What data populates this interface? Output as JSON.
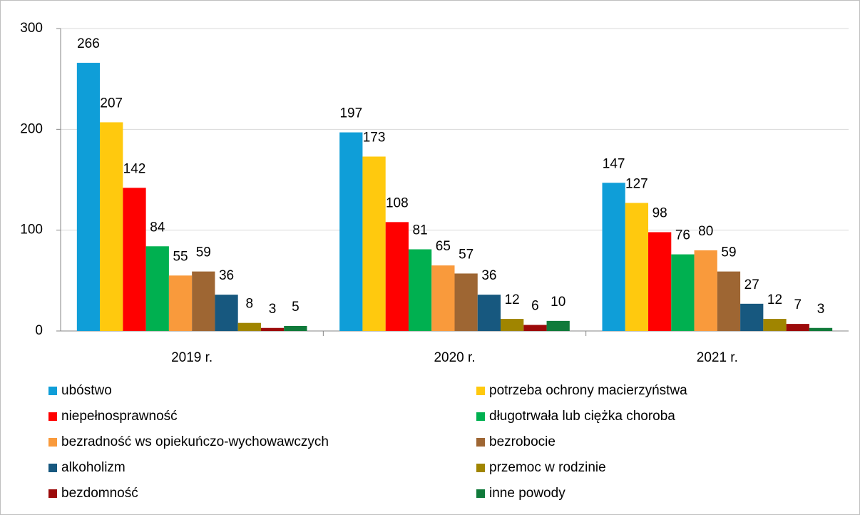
{
  "chart_data": {
    "type": "bar",
    "categories": [
      "2019 r.",
      "2020 r.",
      "2021 r."
    ],
    "series": [
      {
        "name": "ubóstwo",
        "color": "#0f9ed8",
        "values": [
          266,
          197,
          147
        ]
      },
      {
        "name": "potrzeba ochrony macierzyństwa",
        "color": "#ffc90e",
        "values": [
          207,
          173,
          127
        ]
      },
      {
        "name": "niepełnosprawność",
        "color": "#ff0000",
        "values": [
          142,
          108,
          98
        ]
      },
      {
        "name": "długotrwała lub ciężka choroba",
        "color": "#00b050",
        "values": [
          84,
          81,
          76
        ]
      },
      {
        "name": "bezradność ws opiekuńczo-wychowawczych",
        "color": "#f99a3c",
        "values": [
          55,
          65,
          80
        ]
      },
      {
        "name": "bezrobocie",
        "color": "#9e6633",
        "values": [
          59,
          57,
          59
        ]
      },
      {
        "name": "alkoholizm",
        "color": "#17587f",
        "values": [
          36,
          36,
          27
        ]
      },
      {
        "name": "przemoc w rodzinie",
        "color": "#a08500",
        "values": [
          8,
          12,
          12
        ]
      },
      {
        "name": "bezdomność",
        "color": "#9c0a0a",
        "values": [
          3,
          6,
          7
        ]
      },
      {
        "name": "inne powody",
        "color": "#107a3a",
        "values": [
          5,
          10,
          3
        ]
      }
    ],
    "ylim": [
      0,
      300
    ],
    "yticks": [
      0,
      100,
      200,
      300
    ],
    "grid": true,
    "legend": "bottom"
  }
}
